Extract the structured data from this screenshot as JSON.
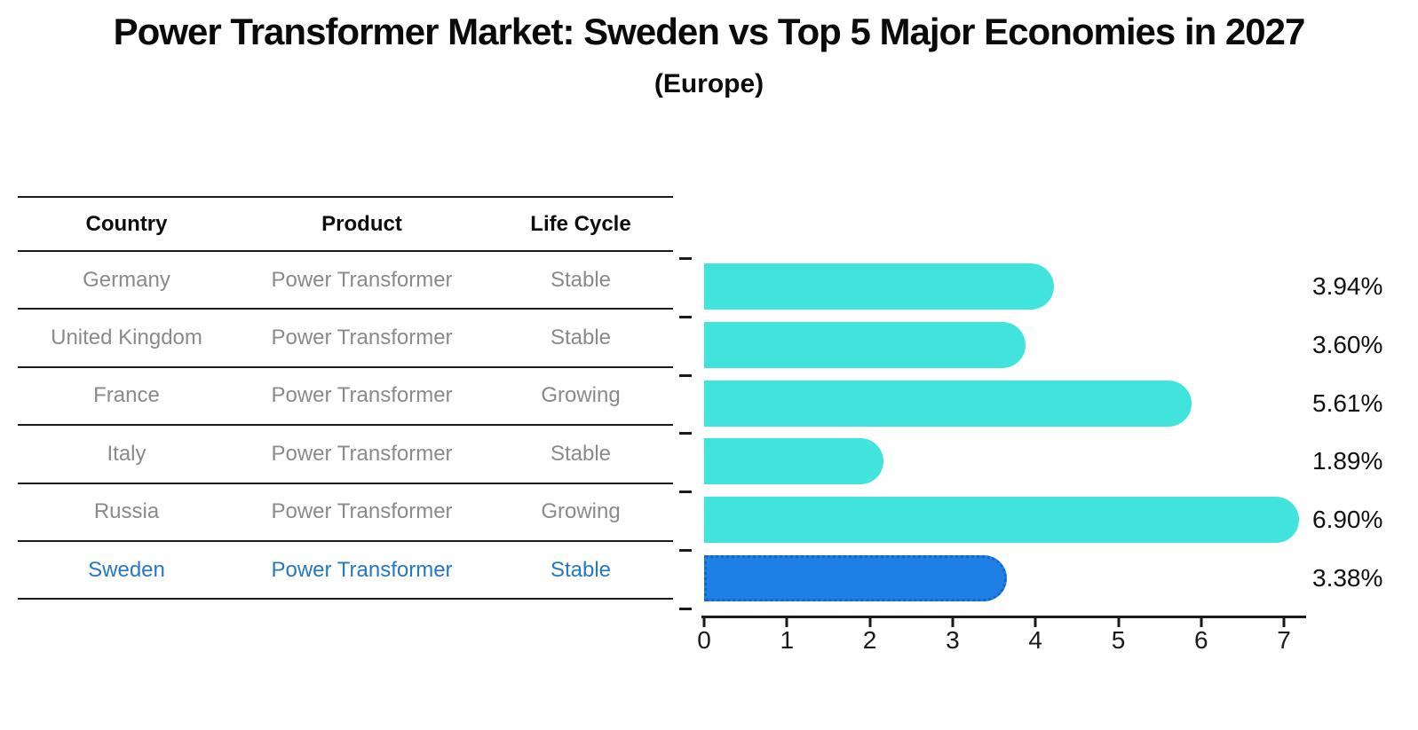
{
  "title": "Power Transformer Market: Sweden vs Top 5 Major Economies in 2027",
  "subtitle": "(Europe)",
  "table": {
    "headers": [
      "Country",
      "Product",
      "Life Cycle"
    ],
    "rows": [
      {
        "country": "Germany",
        "product": "Power Transformer",
        "life_cycle": "Stable",
        "highlight": false
      },
      {
        "country": "United Kingdom",
        "product": "Power Transformer",
        "life_cycle": "Stable",
        "highlight": false
      },
      {
        "country": "France",
        "product": "Power Transformer",
        "life_cycle": "Growing",
        "highlight": false
      },
      {
        "country": "Italy",
        "product": "Power Transformer",
        "life_cycle": "Stable",
        "highlight": false
      },
      {
        "country": "Russia",
        "product": "Power Transformer",
        "life_cycle": "Growing",
        "highlight": false
      },
      {
        "country": "Sweden",
        "product": "Power Transformer",
        "life_cycle": "Stable",
        "highlight": true
      }
    ]
  },
  "chart_data": {
    "type": "bar",
    "orientation": "horizontal",
    "title": "Power Transformer Market: Sweden vs Top 5 Major Economies in 2027",
    "subtitle": "(Europe)",
    "categories": [
      "Germany",
      "United Kingdom",
      "France",
      "Italy",
      "Russia",
      "Sweden"
    ],
    "values": [
      3.94,
      3.6,
      5.61,
      1.89,
      6.9,
      3.38
    ],
    "value_labels": [
      "3.94%",
      "3.60%",
      "5.61%",
      "1.89%",
      "6.90%",
      "3.38%"
    ],
    "xlim": [
      0,
      7
    ],
    "xtick_labels": [
      "0",
      "1",
      "2",
      "3",
      "4",
      "5",
      "6",
      "7"
    ],
    "grid": false,
    "legend": "none",
    "highlight_index": 5
  },
  "colors": {
    "bar": "#41e4dc",
    "highlight_bar": "#1e7fe5",
    "highlight_border": "#1565c8",
    "highlight_text": "#2478c4",
    "row_text": "#8a8a8a",
    "axis": "#1a1a1a"
  }
}
